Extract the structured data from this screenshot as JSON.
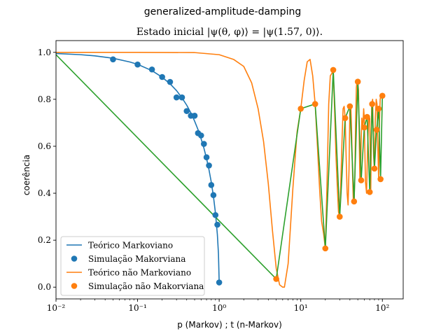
{
  "chart_data": {
    "type": "line",
    "suptitle": "generalized-amplitude-damping",
    "title": "Estado inicial |ψ(θ, φ)⟩ = |ψ(1.57, 0)⟩.",
    "xlabel": "p (Markov) ; t (n-Markov)",
    "ylabel": "coerência",
    "xscale": "log",
    "xlim": [
      0.01,
      180
    ],
    "ylim": [
      -0.05,
      1.05
    ],
    "xticks": [
      {
        "value": 0.01,
        "label": "10⁻²"
      },
      {
        "value": 0.1,
        "label": "10⁻¹"
      },
      {
        "value": 1,
        "label": "10⁰"
      },
      {
        "value": 10,
        "label": "10¹"
      },
      {
        "value": 100,
        "label": "10²"
      }
    ],
    "yticks": [
      {
        "value": 0.0,
        "label": "0.0"
      },
      {
        "value": 0.2,
        "label": "0.2"
      },
      {
        "value": 0.4,
        "label": "0.4"
      },
      {
        "value": 0.6,
        "label": "0.6"
      },
      {
        "value": 0.8,
        "label": "0.8"
      },
      {
        "value": 1.0,
        "label": "1.0"
      }
    ],
    "legend_position": "lower-left",
    "colors": {
      "blue": "#1f77b4",
      "orange": "#ff7f0e",
      "green": "#2ca02c"
    },
    "series": [
      {
        "name": "Teórico Markoviano",
        "kind": "line",
        "color": "#1f77b4",
        "x": [
          0.01,
          0.02,
          0.03,
          0.05,
          0.08,
          0.1,
          0.15,
          0.2,
          0.25,
          0.3,
          0.35,
          0.4,
          0.45,
          0.5,
          0.55,
          0.6,
          0.65,
          0.7,
          0.75,
          0.8,
          0.85,
          0.9,
          0.95,
          0.98,
          1.0
        ],
        "y": [
          0.995,
          0.99,
          0.985,
          0.975,
          0.959,
          0.949,
          0.922,
          0.894,
          0.866,
          0.837,
          0.806,
          0.775,
          0.742,
          0.707,
          0.671,
          0.632,
          0.592,
          0.548,
          0.5,
          0.447,
          0.387,
          0.316,
          0.224,
          0.141,
          0.02
        ]
      },
      {
        "name": "Simulação Makorviana",
        "kind": "scatter",
        "color": "#1f77b4",
        "x": [
          0.05,
          0.1,
          0.15,
          0.2,
          0.25,
          0.3,
          0.35,
          0.4,
          0.45,
          0.5,
          0.55,
          0.6,
          0.65,
          0.7,
          0.75,
          0.8,
          0.85,
          0.9,
          0.95,
          1.0
        ],
        "y": [
          0.97,
          0.948,
          0.927,
          0.895,
          0.874,
          0.808,
          0.808,
          0.75,
          0.73,
          0.73,
          0.656,
          0.646,
          0.61,
          0.553,
          0.518,
          0.435,
          0.392,
          0.307,
          0.266,
          0.02
        ]
      },
      {
        "name": "Teórico não Markoviano",
        "kind": "line",
        "color": "#ff7f0e",
        "x": [
          0.01,
          0.1,
          0.5,
          1,
          1.5,
          2,
          2.5,
          3,
          3.5,
          4,
          4.5,
          5,
          5.5,
          6,
          6.3,
          7,
          8,
          9,
          10,
          11,
          12,
          13,
          14,
          15,
          16,
          17,
          18,
          19,
          20,
          21,
          22,
          23,
          24,
          25,
          26,
          27,
          28,
          29,
          30,
          31,
          32,
          33,
          34,
          35,
          36,
          37,
          38,
          39,
          40,
          41,
          42,
          43,
          44,
          45,
          46,
          47,
          48,
          49,
          50,
          51,
          52,
          53,
          54,
          55,
          56,
          57,
          58,
          59,
          60,
          62,
          64,
          66,
          68,
          70,
          72,
          74,
          76,
          78,
          80,
          82,
          84,
          86,
          88,
          90,
          92,
          94,
          96,
          98,
          100
        ],
        "y": [
          1.0,
          1.0,
          0.999,
          0.99,
          0.97,
          0.94,
          0.87,
          0.76,
          0.62,
          0.44,
          0.24,
          0.08,
          0.01,
          0.0,
          0.0,
          0.1,
          0.42,
          0.66,
          0.76,
          0.88,
          0.96,
          0.97,
          0.9,
          0.78,
          0.6,
          0.42,
          0.28,
          0.23,
          0.165,
          0.45,
          0.78,
          0.9,
          0.91,
          0.92,
          0.75,
          0.56,
          0.43,
          0.32,
          0.3,
          0.45,
          0.62,
          0.76,
          0.77,
          0.72,
          0.55,
          0.4,
          0.35,
          0.5,
          0.77,
          0.78,
          0.66,
          0.5,
          0.37,
          0.36,
          0.48,
          0.7,
          0.85,
          0.88,
          0.87,
          0.84,
          0.65,
          0.46,
          0.5,
          0.62,
          0.72,
          0.68,
          0.7,
          0.76,
          0.72,
          0.45,
          0.4,
          0.6,
          0.72,
          0.72,
          0.4,
          0.78,
          0.8,
          0.56,
          0.5,
          0.72,
          0.8,
          0.78,
          0.6,
          0.46,
          0.7,
          0.8,
          0.82,
          0.81,
          0.81
        ]
      },
      {
        "name": "Simulação não Makorviana",
        "kind": "scatter",
        "color": "#ff7f0e",
        "x": [
          5,
          10,
          15,
          20,
          25,
          30,
          35,
          40,
          45,
          50,
          55,
          60,
          65,
          70,
          75,
          80,
          85,
          90,
          95,
          100
        ],
        "y": [
          0.035,
          0.76,
          0.78,
          0.165,
          0.925,
          0.3,
          0.72,
          0.77,
          0.365,
          0.875,
          0.455,
          0.68,
          0.725,
          0.405,
          0.78,
          0.505,
          0.67,
          0.76,
          0.46,
          0.815
        ]
      },
      {
        "kind": "line",
        "color": "#2ca02c",
        "x": [
          0.01,
          5,
          10,
          15,
          20,
          25,
          30,
          35,
          40,
          45,
          50,
          55,
          60,
          65,
          70,
          75,
          80,
          85,
          90,
          95,
          100
        ],
        "y": [
          0.99,
          0.035,
          0.76,
          0.78,
          0.165,
          0.925,
          0.3,
          0.72,
          0.77,
          0.365,
          0.875,
          0.455,
          0.68,
          0.725,
          0.405,
          0.78,
          0.505,
          0.67,
          0.76,
          0.46,
          0.815
        ]
      }
    ],
    "legend": [
      {
        "label": "Teórico Markoviano",
        "kind": "line",
        "color": "#1f77b4"
      },
      {
        "label": "Simulação Makorviana",
        "kind": "marker",
        "color": "#1f77b4"
      },
      {
        "label": "Teórico não Markoviano",
        "kind": "line",
        "color": "#ff7f0e"
      },
      {
        "label": "Simulação não Makorviana",
        "kind": "marker",
        "color": "#ff7f0e"
      }
    ]
  }
}
